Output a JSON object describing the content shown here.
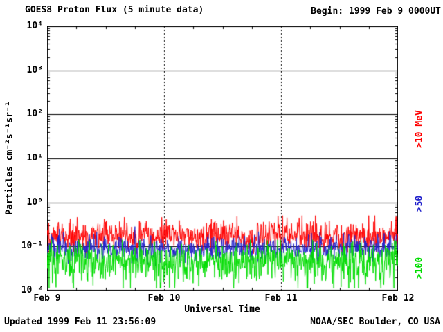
{
  "footer": {
    "updated": "Updated 1999 Feb 11 23:56:09",
    "credit": "NOAA/SEC Boulder, CO USA"
  },
  "chart_data": {
    "type": "line",
    "title": "GOES8 Proton Flux (5 minute data)",
    "begin_label": "Begin: 1999 Feb 9 0000UT",
    "xlabel": "Universal Time",
    "ylabel": "Particles cm⁻²s⁻¹sr⁻¹",
    "y_scale": "log",
    "ylim": [
      0.01,
      10000
    ],
    "y_tick_labels": [
      "10⁴",
      "10³",
      "10²",
      "10¹",
      "10⁰",
      "10⁻¹",
      "10⁻²"
    ],
    "y_tick_exponents": [
      4,
      3,
      2,
      1,
      0,
      -1,
      -2
    ],
    "x_ticks": [
      "Feb 9",
      "Feb 10",
      "Feb 11",
      "Feb 12"
    ],
    "x_days": 3,
    "points_per_day": 288,
    "grid": {
      "horizontal": "solid-every-decade",
      "vertical": "dashed-at-day-boundaries"
    },
    "series": [
      {
        "name": ">10 MeV",
        "color": "#ff0000",
        "description": "noisy band around 0.17, range ~0.07-0.5",
        "log10_mean": -0.77,
        "log10_sigma": 0.16,
        "log10_min": -1.2,
        "log10_max": -0.3,
        "spike_prob": 0.05,
        "spike_log10_boost": 0.35,
        "seed": 101
      },
      {
        "name": ">50",
        "color": "#2222cc",
        "description": "noisy band around 0.09, range ~0.04-0.25",
        "log10_mean": -1.04,
        "log10_sigma": 0.14,
        "log10_min": -1.55,
        "log10_max": -0.55,
        "spike_prob": 0.02,
        "spike_log10_boost": 0.25,
        "seed": 202
      },
      {
        "name": ">100",
        "color": "#00dd00",
        "description": "noisy band around 0.045, dips toward 0.012",
        "log10_mean": -1.33,
        "log10_sigma": 0.2,
        "log10_min": -1.95,
        "log10_max": -0.85,
        "spike_prob": 0.06,
        "spike_log10_boost": -0.5,
        "seed": 303
      }
    ]
  }
}
